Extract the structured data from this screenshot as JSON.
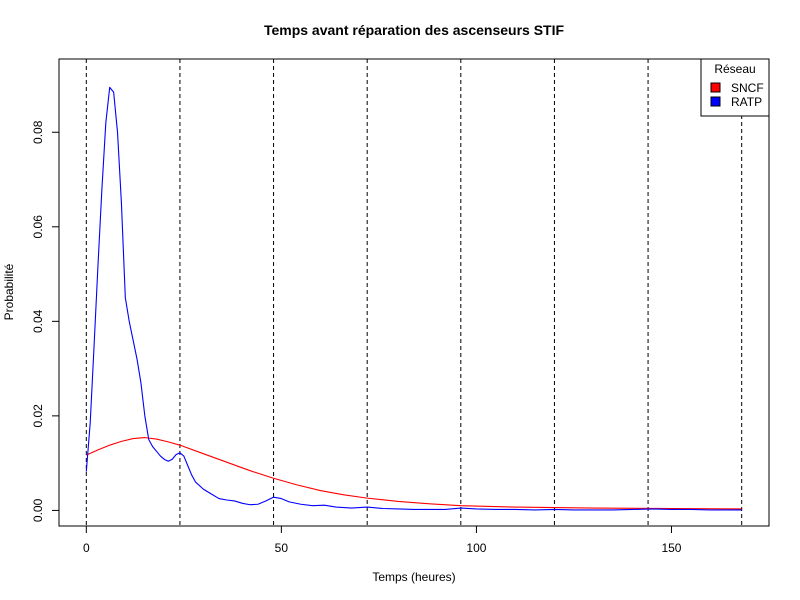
{
  "chart_data": {
    "type": "line",
    "title": "Temps avant réparation des ascenseurs STIF",
    "xlabel": "Temps (heures)",
    "ylabel": "Probabilité",
    "xlim": [
      -7,
      175
    ],
    "ylim": [
      -0.0033,
      0.0955
    ],
    "x_ticks": [
      0,
      50,
      100,
      150
    ],
    "y_ticks": [
      0.0,
      0.02,
      0.04,
      0.06,
      0.08
    ],
    "y_tick_labels": [
      "0.00",
      "0.02",
      "0.04",
      "0.06",
      "0.08"
    ],
    "vlines": [
      0,
      24,
      48,
      72,
      96,
      120,
      144,
      168
    ],
    "legend": {
      "title": "Réseau",
      "position": "top-right"
    },
    "series": [
      {
        "name": "SNCF",
        "color": "#ff0000",
        "points": [
          [
            0,
            0.0117
          ],
          [
            3,
            0.0128
          ],
          [
            6,
            0.0138
          ],
          [
            9,
            0.0146
          ],
          [
            12,
            0.0152
          ],
          [
            15,
            0.0154
          ],
          [
            18,
            0.0151
          ],
          [
            21,
            0.0145
          ],
          [
            24,
            0.0138
          ],
          [
            30,
            0.012
          ],
          [
            36,
            0.0102
          ],
          [
            42,
            0.0084
          ],
          [
            48,
            0.0068
          ],
          [
            54,
            0.0054
          ],
          [
            60,
            0.0042
          ],
          [
            66,
            0.0033
          ],
          [
            72,
            0.0026
          ],
          [
            80,
            0.0019
          ],
          [
            88,
            0.0014
          ],
          [
            96,
            0.001
          ],
          [
            110,
            0.0007
          ],
          [
            130,
            0.0005
          ],
          [
            150,
            0.0004
          ],
          [
            168,
            0.0003
          ]
        ]
      },
      {
        "name": "RATP",
        "color": "#0000ff",
        "points": [
          [
            0,
            0.0082
          ],
          [
            1,
            0.0185
          ],
          [
            2,
            0.035
          ],
          [
            3,
            0.052
          ],
          [
            4,
            0.068
          ],
          [
            5,
            0.082
          ],
          [
            6,
            0.0895
          ],
          [
            7,
            0.0885
          ],
          [
            8,
            0.08
          ],
          [
            9,
            0.065
          ],
          [
            10,
            0.045
          ],
          [
            11,
            0.04
          ],
          [
            12,
            0.036
          ],
          [
            13,
            0.032
          ],
          [
            14,
            0.027
          ],
          [
            15,
            0.02
          ],
          [
            16,
            0.015
          ],
          [
            17,
            0.0135
          ],
          [
            18,
            0.0125
          ],
          [
            19,
            0.0115
          ],
          [
            20,
            0.0108
          ],
          [
            21,
            0.0104
          ],
          [
            22,
            0.0108
          ],
          [
            23,
            0.0118
          ],
          [
            24,
            0.0122
          ],
          [
            25,
            0.0115
          ],
          [
            26,
            0.0095
          ],
          [
            27,
            0.0075
          ],
          [
            28,
            0.006
          ],
          [
            30,
            0.0045
          ],
          [
            32,
            0.0035
          ],
          [
            34,
            0.0025
          ],
          [
            36,
            0.0022
          ],
          [
            38,
            0.002
          ],
          [
            40,
            0.0015
          ],
          [
            42,
            0.0012
          ],
          [
            44,
            0.0013
          ],
          [
            46,
            0.002
          ],
          [
            48,
            0.0028
          ],
          [
            50,
            0.0025
          ],
          [
            52,
            0.0018
          ],
          [
            55,
            0.0013
          ],
          [
            58,
            0.001
          ],
          [
            61,
            0.0011
          ],
          [
            64,
            0.0007
          ],
          [
            68,
            0.0005
          ],
          [
            72,
            0.0007
          ],
          [
            76,
            0.0004
          ],
          [
            80,
            0.0003
          ],
          [
            84,
            0.0002
          ],
          [
            88,
            0.0002
          ],
          [
            92,
            0.0002
          ],
          [
            96,
            0.0005
          ],
          [
            100,
            0.0003
          ],
          [
            105,
            0.0002
          ],
          [
            110,
            0.0002
          ],
          [
            115,
            0.0001
          ],
          [
            120,
            0.0002
          ],
          [
            125,
            0.0001
          ],
          [
            130,
            0.0001
          ],
          [
            135,
            0.0001
          ],
          [
            140,
            0.0002
          ],
          [
            145,
            0.0003
          ],
          [
            150,
            0.0002
          ],
          [
            155,
            0.0002
          ],
          [
            160,
            0.0001
          ],
          [
            168,
            0.0001
          ]
        ]
      }
    ]
  }
}
